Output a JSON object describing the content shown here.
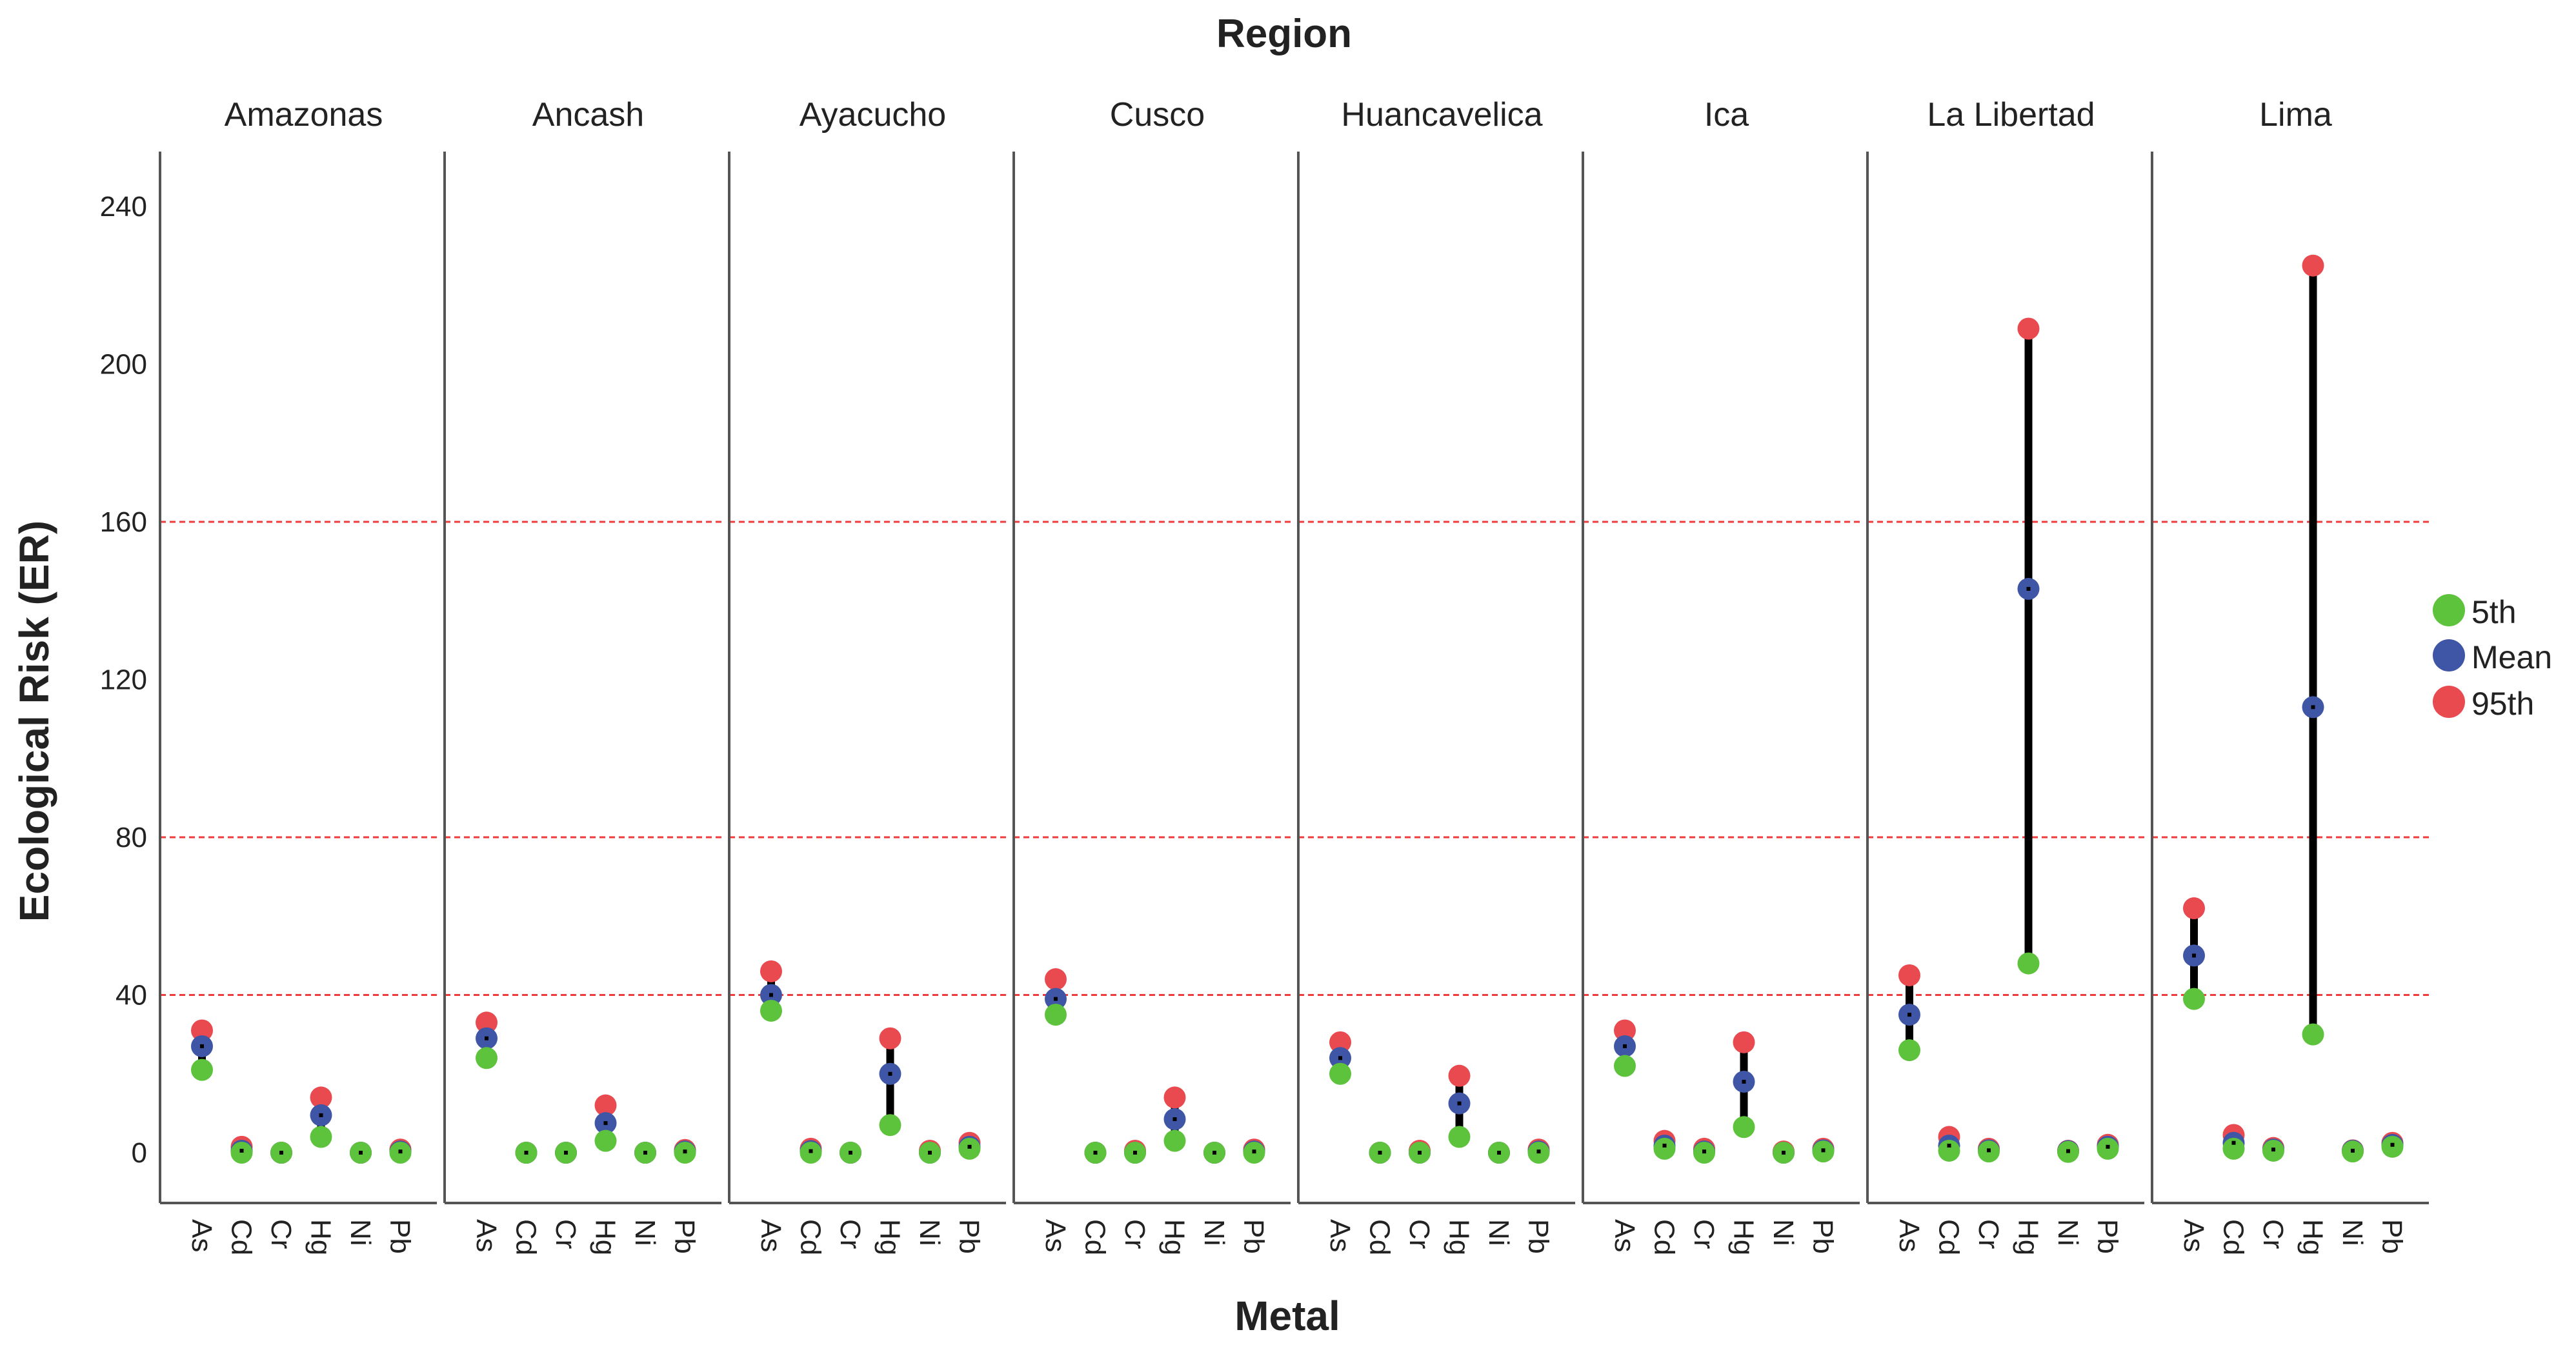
{
  "chart_data": {
    "type": "scatter",
    "title": "Region",
    "xlabel": "Metal",
    "ylabel": "Ecological Risk (ER)",
    "ylim": [
      -12,
      250
    ],
    "yticks": [
      0,
      40,
      80,
      120,
      160,
      200,
      240
    ],
    "reference_lines": [
      40,
      80,
      160
    ],
    "metals": [
      "As",
      "Cd",
      "Cr",
      "Hg",
      "Ni",
      "Pb"
    ],
    "legend": [
      {
        "key": "p5",
        "label": "5th",
        "color": "#5dc23c"
      },
      {
        "key": "mean",
        "label": "Mean",
        "color": "#3f56a6"
      },
      {
        "key": "p95",
        "label": "95th",
        "color": "#e84a4f"
      }
    ],
    "regions": [
      {
        "name": "Amazonas",
        "p5": [
          21,
          0,
          0,
          4,
          0,
          0
        ],
        "mean": [
          27,
          0.5,
          0,
          9.5,
          0,
          0.3
        ],
        "p95": [
          31,
          1.5,
          0,
          14,
          0,
          0.8
        ]
      },
      {
        "name": "Ancash",
        "p5": [
          24,
          0,
          0,
          3,
          0,
          0
        ],
        "mean": [
          29,
          0,
          0,
          7.5,
          0,
          0.3
        ],
        "p95": [
          33,
          0,
          0,
          12,
          0,
          0.7
        ]
      },
      {
        "name": "Ayacucho",
        "p5": [
          36,
          0,
          0,
          7,
          0,
          1
        ],
        "mean": [
          40,
          0.4,
          0,
          20,
          0,
          1.5
        ],
        "p95": [
          46,
          1,
          0,
          29,
          0.5,
          2.5
        ]
      },
      {
        "name": "Cusco",
        "p5": [
          35,
          0,
          0,
          3,
          0,
          0
        ],
        "mean": [
          39,
          0,
          0,
          8.5,
          0,
          0.3
        ],
        "p95": [
          44,
          0,
          0.5,
          14,
          0,
          0.8
        ]
      },
      {
        "name": "Huancavelica",
        "p5": [
          20,
          0,
          0,
          4,
          0,
          0
        ],
        "mean": [
          24,
          0,
          0,
          12.5,
          0,
          0.3
        ],
        "p95": [
          28,
          0,
          0.5,
          19.5,
          0,
          0.8
        ]
      },
      {
        "name": "Ica",
        "p5": [
          22,
          1,
          0,
          6.5,
          0,
          0.3
        ],
        "mean": [
          27,
          1.8,
          0.3,
          18,
          0,
          0.6
        ],
        "p95": [
          31,
          3,
          1,
          28,
          0.3,
          1
        ]
      },
      {
        "name": "La Libertad",
        "p5": [
          26,
          0.5,
          0.3,
          48,
          0.2,
          1
        ],
        "mean": [
          35,
          1.8,
          0.6,
          143,
          0.4,
          1.5
        ],
        "p95": [
          45,
          4,
          1,
          209,
          0.5,
          2
        ]
      },
      {
        "name": "Lima",
        "p5": [
          39,
          1,
          0.5,
          30,
          0.3,
          1.5
        ],
        "mean": [
          50,
          2.5,
          0.8,
          113,
          0.5,
          2
        ],
        "p95": [
          62,
          4.5,
          1.2,
          225,
          0.6,
          2.5
        ]
      }
    ]
  }
}
